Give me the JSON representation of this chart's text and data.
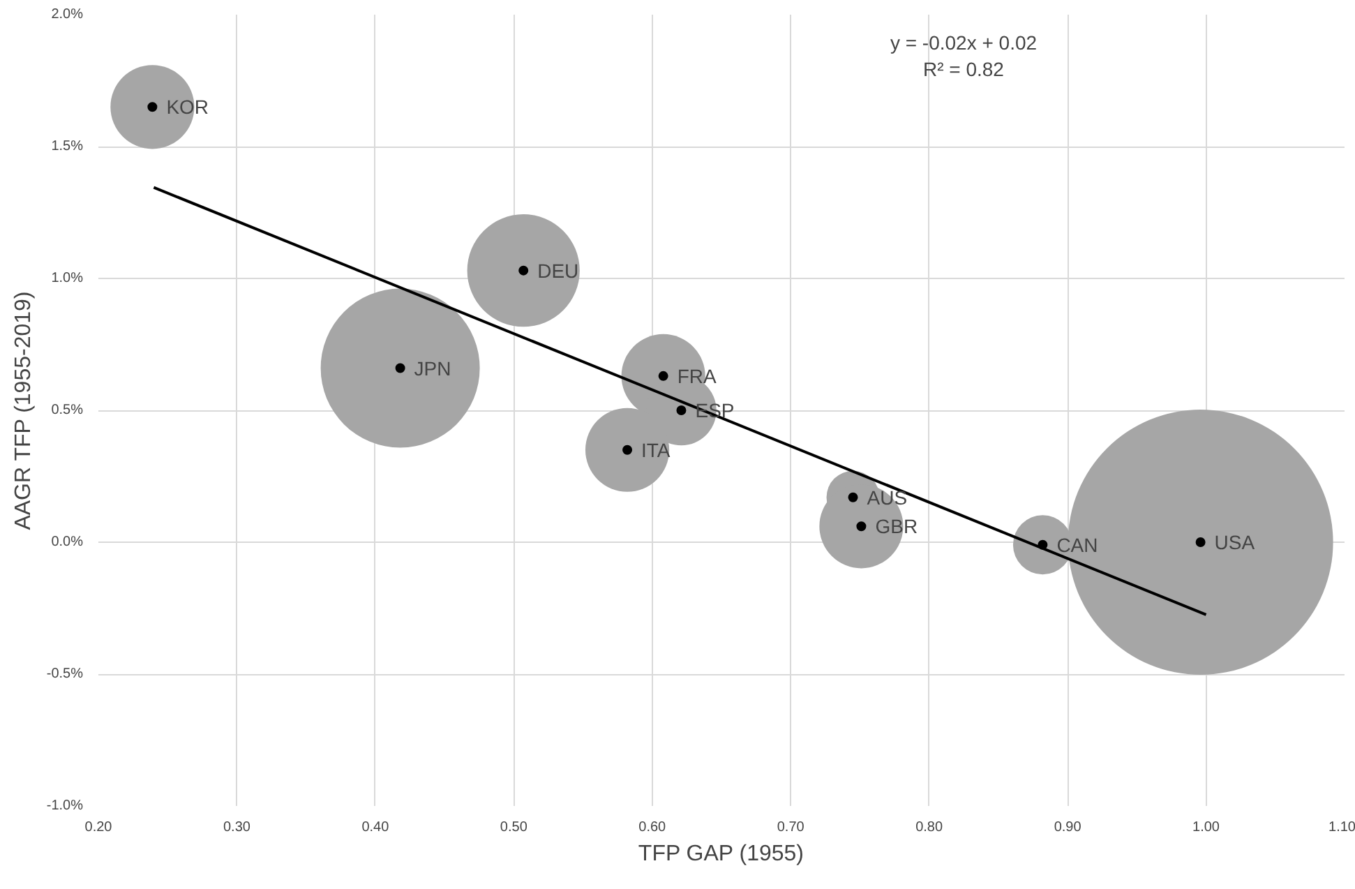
{
  "chart_data": {
    "type": "bubble",
    "xlabel": "TFP GAP (1955)",
    "ylabel": "AAGR TFP (1955-2019)",
    "xlim": [
      0.2,
      1.1
    ],
    "ylim": [
      -1.0,
      2.0
    ],
    "xticks": [
      {
        "value": 0.2,
        "label": "0.20"
      },
      {
        "value": 0.3,
        "label": "0.30"
      },
      {
        "value": 0.4,
        "label": "0.40"
      },
      {
        "value": 0.5,
        "label": "0.50"
      },
      {
        "value": 0.6,
        "label": "0.60"
      },
      {
        "value": 0.7,
        "label": "0.70"
      },
      {
        "value": 0.8,
        "label": "0.80"
      },
      {
        "value": 0.9,
        "label": "0.90"
      },
      {
        "value": 1.0,
        "label": "1.00"
      },
      {
        "value": 1.1,
        "label": "1.10"
      }
    ],
    "yticks": [
      {
        "value": -1.0,
        "label": "-1.0%"
      },
      {
        "value": -0.5,
        "label": "-0.5%"
      },
      {
        "value": 0.0,
        "label": "0.0%"
      },
      {
        "value": 0.5,
        "label": "0.5%"
      },
      {
        "value": 1.0,
        "label": "1.0%"
      },
      {
        "value": 1.5,
        "label": "1.5%"
      },
      {
        "value": 2.0,
        "label": "2.0%"
      }
    ],
    "grid": true,
    "series": [
      {
        "marker": "circle",
        "color": "#a6a6a6",
        "x": [
          0.239,
          0.507,
          0.418,
          0.608,
          0.621,
          0.582,
          0.745,
          0.751,
          0.882,
          0.996
        ],
        "values": [
          1.65,
          1.03,
          0.66,
          0.63,
          0.5,
          0.35,
          0.17,
          0.06,
          -0.01,
          0.0
        ],
        "sizes": [
          0.1,
          0.18,
          0.36,
          0.1,
          0.07,
          0.1,
          0.04,
          0.1,
          0.05,
          1
        ]
      },
      {
        "type": "line",
        "color": "#000000",
        "x": [
          0.24,
          1.0
        ],
        "values": [
          1.345,
          -0.275
        ]
      }
    ],
    "annotations": [
      {
        "text": "KOR",
        "x": 0.239,
        "y": 1.65
      },
      {
        "text": "DEU",
        "x": 0.507,
        "y": 1.03
      },
      {
        "text": "JPN",
        "x": 0.418,
        "y": 0.66
      },
      {
        "text": "FRA",
        "x": 0.608,
        "y": 0.63
      },
      {
        "text": "ESP",
        "x": 0.621,
        "y": 0.5
      },
      {
        "text": "ITA",
        "x": 0.582,
        "y": 0.35
      },
      {
        "text": "AUS",
        "x": 0.745,
        "y": 0.17
      },
      {
        "text": "GBR",
        "x": 0.751,
        "y": 0.06
      },
      {
        "text": "CAN",
        "x": 0.882,
        "y": -0.01
      },
      {
        "text": "USA",
        "x": 0.996,
        "y": 0.0
      },
      "y = -0.02x + 0.02\nR² = 0.82"
    ]
  }
}
